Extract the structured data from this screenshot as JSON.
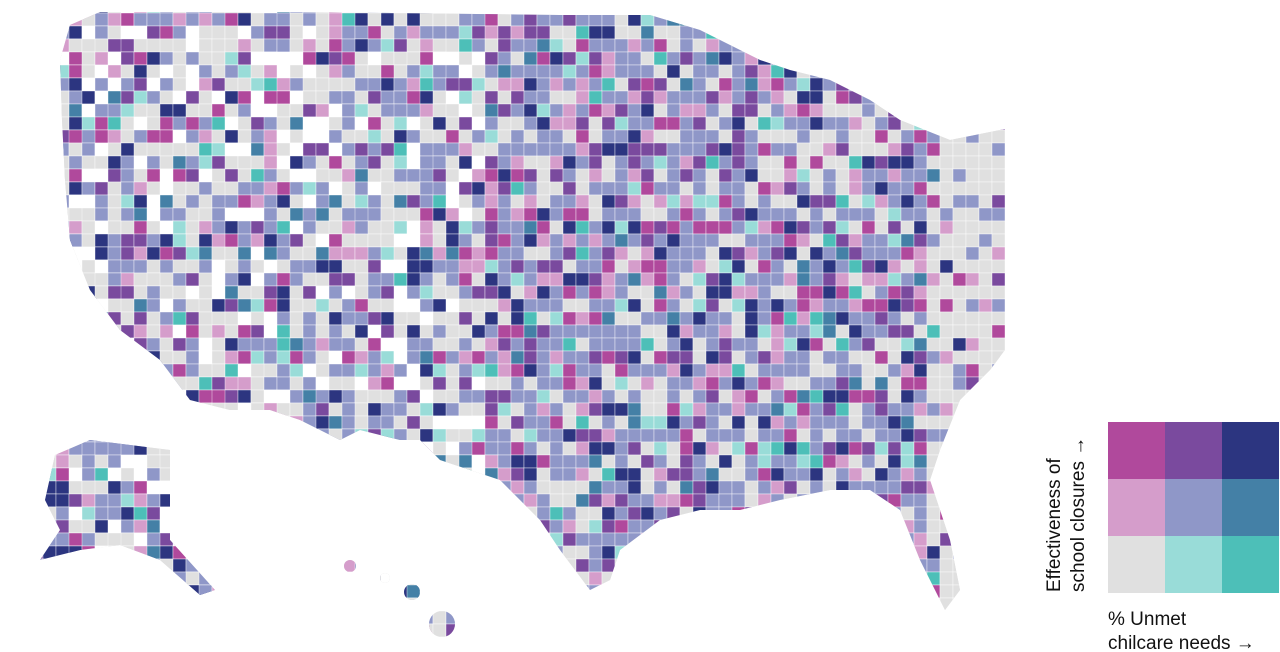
{
  "legend": {
    "y_label_lines": [
      "Effectiveness of",
      "school closures →"
    ],
    "x_label_lines": [
      "% Unmet",
      "chilcare needs →"
    ],
    "colors": [
      [
        "#b0499c",
        "#7a4a9e",
        "#2c3580"
      ],
      [
        "#d59dcb",
        "#8f97c8",
        "#4480a6"
      ],
      [
        "#e0e0e0",
        "#99dcd8",
        "#4dbfb8"
      ]
    ]
  }
}
